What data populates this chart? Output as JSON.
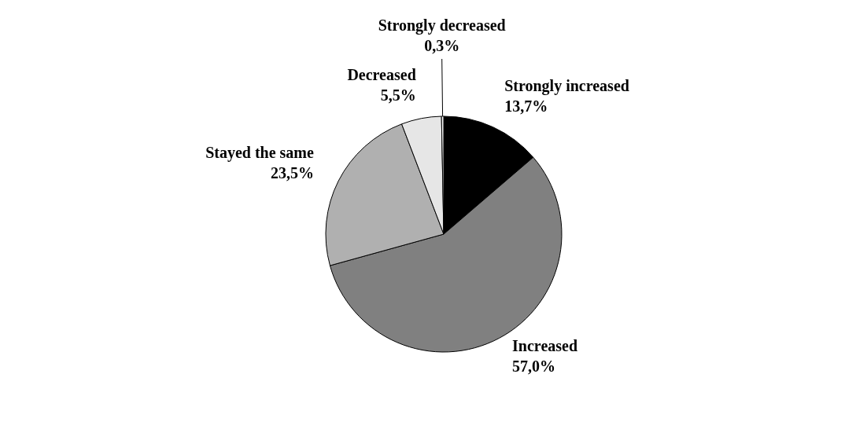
{
  "chart_data": {
    "type": "pie",
    "categories": [
      "Strongly increased",
      "Increased",
      "Stayed the same",
      "Decreased",
      "Strongly decreased"
    ],
    "values": [
      13.7,
      57.0,
      23.5,
      5.5,
      0.3
    ],
    "colors": [
      "#000000",
      "#808080",
      "#b0b0b0",
      "#e6e6e6",
      "#ffffff"
    ],
    "value_labels": [
      "13,7%",
      "57,0%",
      "23,5%",
      "5,5%",
      "0,3%"
    ]
  }
}
